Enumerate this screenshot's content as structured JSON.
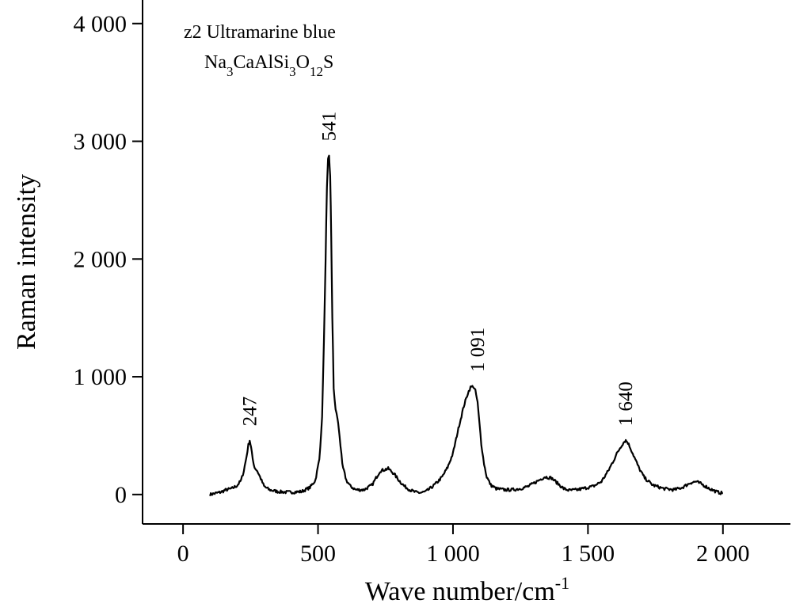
{
  "chart_data": {
    "type": "line",
    "annotation": {
      "line1": "z2  Ultramarine blue",
      "formula": [
        {
          "t": "Na",
          "sub": false
        },
        {
          "t": "3",
          "sub": true
        },
        {
          "t": "CaAlSi",
          "sub": false
        },
        {
          "t": "3",
          "sub": true
        },
        {
          "t": "O",
          "sub": false
        },
        {
          "t": "12",
          "sub": true
        },
        {
          "t": "S",
          "sub": false
        }
      ]
    },
    "xlabel": "Wave number/cm",
    "xlabel_sup": "-1",
    "ylabel": "Raman intensity",
    "xlim": [
      -150,
      2250
    ],
    "ylim": [
      -250,
      4200
    ],
    "x_ticks": [
      0,
      500,
      1000,
      1500,
      2000
    ],
    "x_tick_labels": [
      "0",
      "500",
      "1 000",
      "1 500",
      "2 000"
    ],
    "y_ticks": [
      0,
      1000,
      2000,
      3000,
      4000
    ],
    "y_tick_labels": [
      "0",
      "1 000",
      "2 000",
      "3 000",
      "4 000"
    ],
    "grid": false,
    "peak_labels": [
      {
        "x": 247,
        "y": 460,
        "label": "247"
      },
      {
        "x": 541,
        "y": 2880,
        "label": "541"
      },
      {
        "x": 1091,
        "y": 920,
        "label": "1 091"
      },
      {
        "x": 1640,
        "y": 460,
        "label": "1 640"
      }
    ],
    "series": [
      {
        "x": [
          100,
          120,
          140,
          160,
          180,
          200,
          215,
          225,
          235,
          242,
          247,
          252,
          258,
          265,
          275,
          285,
          300,
          320,
          350,
          380,
          410,
          440,
          470,
          490,
          505,
          515,
          522,
          528,
          533,
          537,
          541,
          545,
          549,
          553,
          558,
          565,
          572,
          580,
          590,
          605,
          620,
          640,
          670,
          700,
          730,
          760,
          780,
          800,
          820,
          840,
          860,
          880,
          900,
          920,
          940,
          960,
          980,
          1000,
          1020,
          1040,
          1055,
          1065,
          1075,
          1083,
          1091,
          1098,
          1105,
          1115,
          1125,
          1140,
          1160,
          1190,
          1220,
          1250,
          1280,
          1310,
          1340,
          1365,
          1390,
          1410,
          1430,
          1460,
          1490,
          1520,
          1550,
          1575,
          1595,
          1610,
          1625,
          1635,
          1640,
          1648,
          1660,
          1675,
          1690,
          1710,
          1740,
          1780,
          1820,
          1850,
          1880,
          1900,
          1920,
          1950,
          1980,
          2000
        ],
        "y": [
          0,
          10,
          20,
          40,
          50,
          75,
          120,
          200,
          320,
          420,
          460,
          400,
          300,
          230,
          200,
          150,
          70,
          40,
          25,
          20,
          20,
          25,
          60,
          120,
          300,
          650,
          1300,
          2000,
          2600,
          2840,
          2880,
          2700,
          2200,
          1500,
          900,
          720,
          650,
          500,
          250,
          120,
          70,
          40,
          40,
          80,
          200,
          220,
          180,
          120,
          70,
          40,
          20,
          15,
          25,
          60,
          100,
          150,
          230,
          350,
          560,
          750,
          860,
          910,
          920,
          880,
          780,
          600,
          430,
          260,
          150,
          80,
          50,
          40,
          40,
          50,
          70,
          110,
          150,
          140,
          90,
          50,
          35,
          40,
          55,
          70,
          110,
          200,
          290,
          360,
          420,
          450,
          460,
          440,
          380,
          300,
          220,
          140,
          80,
          50,
          40,
          60,
          100,
          110,
          90,
          50,
          20,
          10
        ]
      }
    ]
  }
}
